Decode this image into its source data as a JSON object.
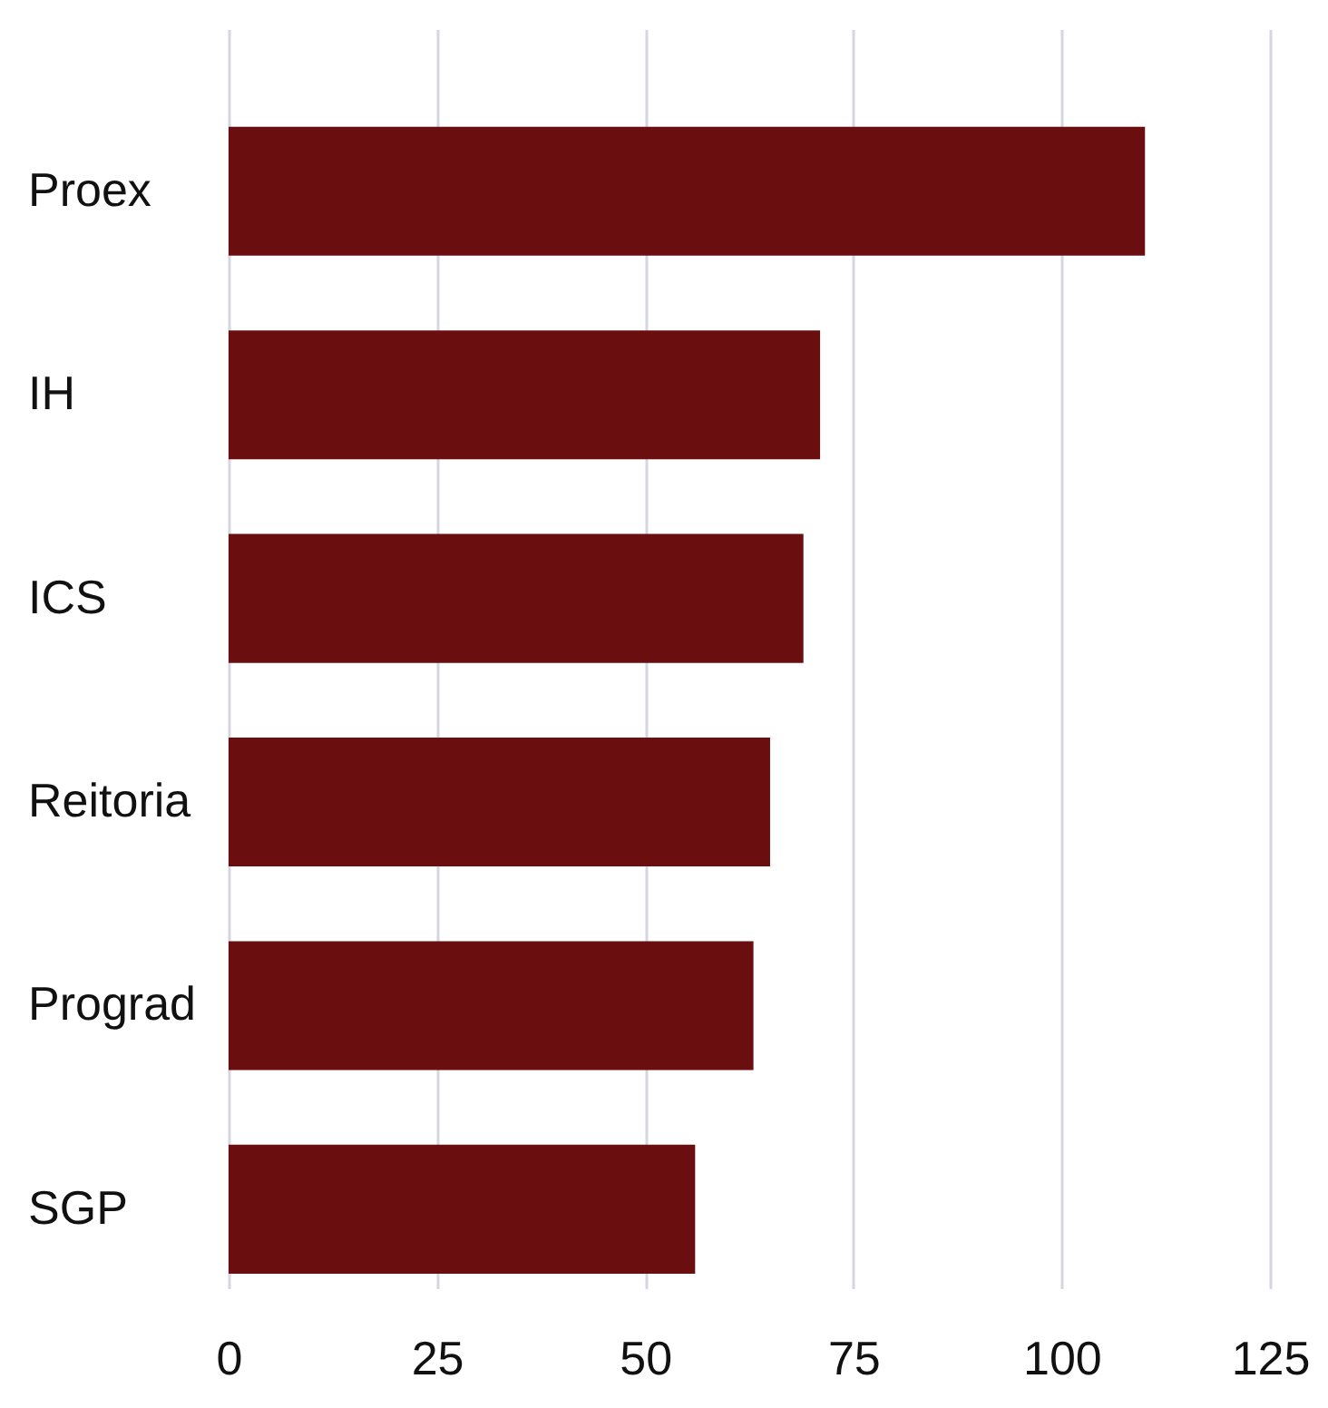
{
  "chart_data": {
    "type": "bar",
    "orientation": "horizontal",
    "categories": [
      "Proex",
      "IH",
      "ICS",
      "Reitoria",
      "Prograd",
      "SGP"
    ],
    "values": [
      110,
      71,
      69,
      65,
      63,
      56
    ],
    "color": "#6a0e10",
    "xlim": [
      0,
      125
    ],
    "xticks": [
      0,
      25,
      50,
      75,
      100,
      125
    ],
    "grid": "x"
  }
}
